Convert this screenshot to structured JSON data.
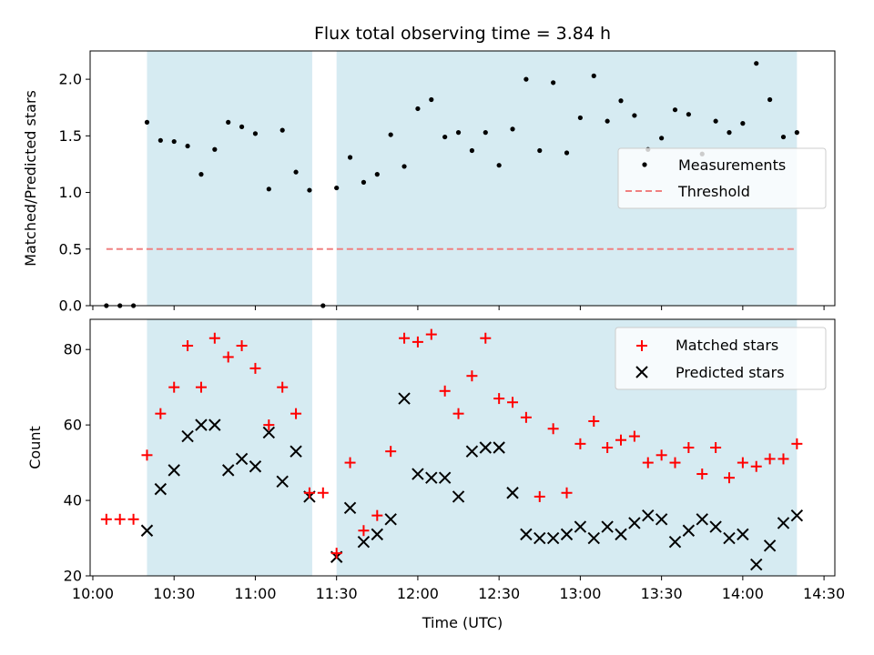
{
  "chart_data": [
    {
      "type": "scatter",
      "title": "Flux total observing time = 3.84 h",
      "ylabel": "Matched/Predicted stars",
      "ylim": [
        0,
        2.25
      ],
      "xlim": [
        "09:59",
        "14:34"
      ],
      "yticks": [
        "0.0",
        "0.5",
        "1.0",
        "1.5",
        "2.0"
      ],
      "shaded_intervals": [
        [
          "10:20",
          "11:21"
        ],
        [
          "11:30",
          "14:20"
        ]
      ],
      "legend_position": "center-right",
      "series": [
        {
          "name": "Measurements",
          "color": "#000000",
          "marker": "dot",
          "x": [
            "10:05",
            "10:10",
            "10:15",
            "10:20",
            "10:25",
            "10:30",
            "10:35",
            "10:40",
            "10:45",
            "10:50",
            "10:55",
            "11:00",
            "11:05",
            "11:10",
            "11:15",
            "11:20",
            "11:25",
            "11:30",
            "11:35",
            "11:40",
            "11:45",
            "11:50",
            "11:55",
            "12:00",
            "12:05",
            "12:10",
            "12:15",
            "12:20",
            "12:25",
            "12:30",
            "12:35",
            "12:40",
            "12:45",
            "12:50",
            "12:55",
            "13:00",
            "13:05",
            "13:10",
            "13:15",
            "13:20",
            "13:25",
            "13:30",
            "13:35",
            "13:40",
            "13:45",
            "13:50",
            "13:55",
            "14:00",
            "14:05",
            "14:10",
            "14:15",
            "14:20"
          ],
          "values": [
            0,
            0,
            0,
            1.62,
            1.46,
            1.45,
            1.41,
            1.16,
            1.38,
            1.62,
            1.58,
            1.52,
            1.03,
            1.55,
            1.18,
            1.02,
            0,
            1.04,
            1.31,
            1.09,
            1.16,
            1.51,
            1.23,
            1.74,
            1.82,
            1.49,
            1.53,
            1.37,
            1.53,
            1.24,
            1.56,
            2.0,
            1.37,
            1.97,
            1.35,
            1.66,
            2.03,
            1.63,
            1.81,
            1.68,
            1.38,
            1.48,
            1.73,
            1.69,
            1.34,
            1.63,
            1.53,
            1.61,
            2.14,
            1.82,
            1.49,
            1.53
          ]
        },
        {
          "name": "Threshold",
          "color": "#f08080",
          "style": "dashed",
          "x": [
            "10:05",
            "14:20"
          ],
          "values": [
            0.5,
            0.5
          ]
        }
      ]
    },
    {
      "type": "scatter",
      "ylabel": "Count",
      "xlabel": "Time (UTC)",
      "ylim": [
        20,
        88
      ],
      "yticks": [
        "20",
        "40",
        "60",
        "80"
      ],
      "xticks": [
        "10:00",
        "10:30",
        "11:00",
        "11:30",
        "12:00",
        "12:30",
        "13:00",
        "13:30",
        "14:00",
        "14:30"
      ],
      "legend_position": "top-right",
      "series": [
        {
          "name": "Matched stars",
          "color": "#ff0000",
          "marker": "plus",
          "x": [
            "10:05",
            "10:10",
            "10:15",
            "10:20",
            "10:25",
            "10:30",
            "10:35",
            "10:40",
            "10:45",
            "10:50",
            "10:55",
            "11:00",
            "11:05",
            "11:10",
            "11:15",
            "11:20",
            "11:25",
            "11:30",
            "11:35",
            "11:40",
            "11:45",
            "11:50",
            "11:55",
            "12:00",
            "12:05",
            "12:10",
            "12:15",
            "12:20",
            "12:25",
            "12:30",
            "12:35",
            "12:40",
            "12:45",
            "12:50",
            "12:55",
            "13:00",
            "13:05",
            "13:10",
            "13:15",
            "13:20",
            "13:25",
            "13:30",
            "13:35",
            "13:40",
            "13:45",
            "13:50",
            "13:55",
            "14:00",
            "14:05",
            "14:10",
            "14:15",
            "14:20"
          ],
          "values": [
            35,
            35,
            35,
            52,
            63,
            70,
            81,
            70,
            83,
            78,
            81,
            75,
            60,
            70,
            63,
            42,
            42,
            26,
            50,
            32,
            36,
            53,
            83,
            82,
            84,
            69,
            63,
            73,
            83,
            67,
            66,
            62,
            41,
            59,
            42,
            55,
            61,
            54,
            56,
            57,
            50,
            52,
            50,
            54,
            47,
            54,
            46,
            50,
            49,
            51,
            51,
            55
          ]
        },
        {
          "name": "Predicted stars",
          "color": "#000000",
          "marker": "x",
          "x": [
            "10:20",
            "10:25",
            "10:30",
            "10:35",
            "10:40",
            "10:45",
            "10:50",
            "10:55",
            "11:00",
            "11:05",
            "11:10",
            "11:15",
            "11:20",
            "11:30",
            "11:35",
            "11:40",
            "11:45",
            "11:50",
            "11:55",
            "12:00",
            "12:05",
            "12:10",
            "12:15",
            "12:20",
            "12:25",
            "12:30",
            "12:35",
            "12:40",
            "12:45",
            "12:50",
            "12:55",
            "13:00",
            "13:05",
            "13:10",
            "13:15",
            "13:20",
            "13:25",
            "13:30",
            "13:35",
            "13:40",
            "13:45",
            "13:50",
            "13:55",
            "14:00",
            "14:05",
            "14:10",
            "14:15",
            "14:20"
          ],
          "values": [
            32,
            43,
            48,
            57,
            60,
            60,
            48,
            51,
            49,
            58,
            45,
            53,
            41,
            25,
            38,
            29,
            31,
            35,
            67,
            47,
            46,
            46,
            41,
            53,
            54,
            54,
            42,
            31,
            30,
            30,
            31,
            33,
            30,
            33,
            31,
            34,
            36,
            35,
            29,
            32,
            35,
            33,
            30,
            31,
            23,
            28,
            34,
            36
          ]
        }
      ]
    }
  ]
}
